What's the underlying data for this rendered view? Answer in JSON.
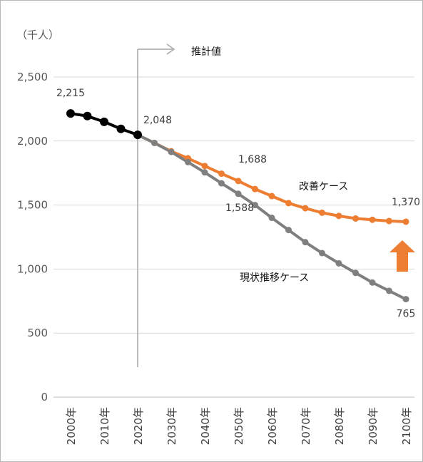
{
  "chart_data": {
    "type": "line",
    "unit_label": "（千人）",
    "ylim": [
      0,
      2500
    ],
    "yticks": [
      "0",
      "500",
      "1,000",
      "1,500",
      "2,000",
      "2,500"
    ],
    "x": [
      2000,
      2005,
      2010,
      2015,
      2020,
      2025,
      2030,
      2035,
      2040,
      2045,
      2050,
      2055,
      2060,
      2065,
      2070,
      2075,
      2080,
      2085,
      2090,
      2095,
      2100
    ],
    "xticks": [
      "2000年",
      "2010年",
      "2020年",
      "2030年",
      "2040年",
      "2050年",
      "2060年",
      "2070年",
      "2080年",
      "2090年",
      "2100年"
    ],
    "grid": true,
    "series": [
      {
        "name": "",
        "color": "#000000",
        "x": [
          2000,
          2005,
          2010,
          2015,
          2020
        ],
        "values": [
          2215,
          2195,
          2150,
          2095,
          2048
        ]
      },
      {
        "name": "改善ケース",
        "color": "#ed7d31",
        "x": [
          2020,
          2025,
          2030,
          2035,
          2040,
          2045,
          2050,
          2055,
          2060,
          2065,
          2070,
          2075,
          2080,
          2085,
          2090,
          2095,
          2100
        ],
        "values": [
          2048,
          1985,
          1920,
          1865,
          1805,
          1745,
          1688,
          1625,
          1570,
          1515,
          1475,
          1440,
          1415,
          1395,
          1385,
          1375,
          1370
        ]
      },
      {
        "name": "現状推移ケース",
        "color": "#7f7f7f",
        "x": [
          2020,
          2025,
          2030,
          2035,
          2040,
          2045,
          2050,
          2055,
          2060,
          2065,
          2070,
          2075,
          2080,
          2085,
          2090,
          2095,
          2100
        ],
        "values": [
          2048,
          1985,
          1915,
          1835,
          1755,
          1670,
          1588,
          1500,
          1400,
          1305,
          1210,
          1125,
          1045,
          970,
          895,
          830,
          765
        ]
      }
    ],
    "data_labels": [
      {
        "x": 2000,
        "value": 2215,
        "text": "2,215"
      },
      {
        "x": 2020,
        "value": 2048,
        "text": "2,048"
      },
      {
        "x": 2050,
        "value": 1688,
        "text": "1,688"
      },
      {
        "x": 2050,
        "value": 1588,
        "text": "1,588"
      },
      {
        "x": 2100,
        "value": 1370,
        "text": "1,370"
      },
      {
        "x": 2100,
        "value": 765,
        "text": "765"
      }
    ],
    "series_labels": {
      "improved": "改善ケース",
      "current": "現状推移ケース"
    },
    "estimate_marker": {
      "x": 2020,
      "label": "推計値"
    }
  },
  "colors": {
    "grid": "#d9d9d9",
    "axis": "#bfbfbf",
    "divider": "#a6a6a6",
    "up_arrow": "#ed7d31"
  }
}
